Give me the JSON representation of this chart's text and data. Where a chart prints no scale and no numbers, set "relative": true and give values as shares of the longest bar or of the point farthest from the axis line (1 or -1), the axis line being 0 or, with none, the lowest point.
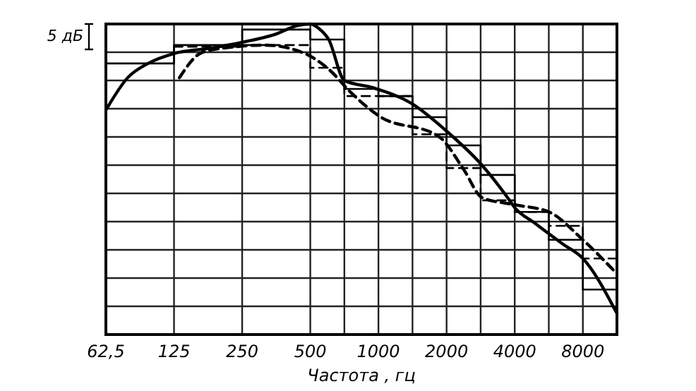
{
  "chart_data": {
    "type": "line",
    "relative": true,
    "xlabel": "Частота , гц",
    "log": "x",
    "grid": true,
    "xlim": [
      62.5,
      11314
    ],
    "xticks": [
      {
        "value": 62.5,
        "label": "62,5"
      },
      125,
      250,
      500,
      {
        "value": 707,
        "label": null
      },
      1000,
      {
        "value": 1414,
        "label": null
      },
      2000,
      {
        "value": 2828,
        "label": null
      },
      4000,
      {
        "value": 5657,
        "label": null
      },
      8000
    ],
    "annotations": [
      "5 дБ"
    ],
    "series": [
      {
        "color": "#000000",
        "line_style": "solid",
        "x": [
          63,
          78,
          96,
          125,
          185,
          250,
          354,
          439,
          500,
          545,
          603,
          707,
          944,
          1394,
          2000,
          2870,
          3720,
          4000,
          4900,
          6540,
          8000,
          11314
        ],
        "values": [
          0.727,
          0.827,
          0.873,
          0.905,
          0.923,
          0.941,
          0.968,
          0.995,
          1.0,
          0.986,
          0.95,
          0.818,
          0.795,
          0.745,
          0.655,
          0.545,
          0.441,
          0.409,
          0.359,
          0.291,
          0.245,
          0.068
        ]
      },
      {
        "color": "#000000",
        "line_style": "dashed",
        "x": [
          132,
          167,
          236,
          315,
          459,
          612,
          749,
          1000,
          1860,
          2378,
          2870,
          4000,
          5657,
          8000,
          11000
        ],
        "values": [
          0.827,
          0.909,
          0.927,
          0.932,
          0.909,
          0.85,
          0.782,
          0.705,
          0.636,
          0.532,
          0.441,
          0.418,
          0.395,
          0.305,
          0.205
        ]
      },
      {
        "type": "step",
        "color": "#000000",
        "line_style": "solid",
        "x": [
          62.5,
          125,
          250,
          500,
          707,
          1000,
          1414,
          2000,
          2828,
          4000,
          5657,
          8000,
          11314
        ],
        "values": [
          0.873,
          0.932,
          0.982,
          0.95,
          0.791,
          0.768,
          0.7,
          0.609,
          0.514,
          0.395,
          0.305,
          0.145,
          0.145
        ]
      },
      {
        "type": "step",
        "color": "#000000",
        "line_style": "dashed",
        "x": [
          125,
          250,
          500,
          707,
          1000,
          1414,
          2000,
          2828,
          4000,
          5657,
          8000,
          11314
        ],
        "values": [
          0.927,
          0.932,
          0.859,
          0.768,
          0.768,
          0.645,
          0.536,
          0.432,
          0.395,
          0.35,
          0.245,
          0.245
        ]
      }
    ]
  }
}
